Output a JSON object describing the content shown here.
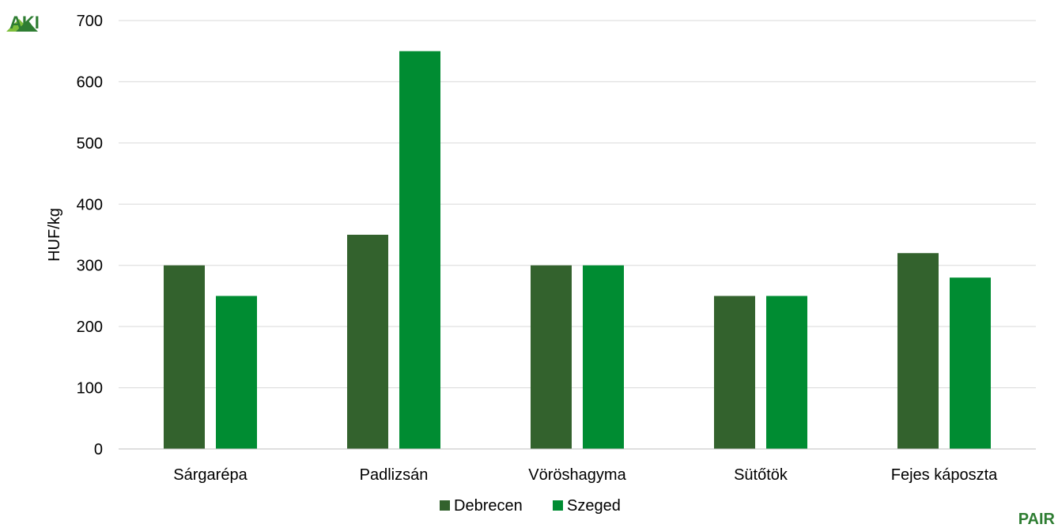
{
  "logos": {
    "top_left": "AKI",
    "bottom_right": "PAIR"
  },
  "colors": {
    "debrecen": "#33622D",
    "szeged": "#008C32",
    "grid": "#D9D9D9",
    "axis": "#BFBFBF",
    "logo_green_light": "#7DBE3A",
    "logo_green_dark": "#2E7D32",
    "pair_text": "#2E7D32"
  },
  "chart_data": {
    "type": "bar",
    "ylabel": "HUF/kg",
    "xlabel": "",
    "ylim": [
      0,
      700
    ],
    "yticks": [
      "0",
      "100",
      "200",
      "300",
      "400",
      "500",
      "600",
      "700"
    ],
    "grid": true,
    "legend_position": "bottom-center",
    "categories": [
      "Sárgarépa",
      "Padlizsán",
      "Vöröshagyma",
      "Sütőtök",
      "Fejes káposzta"
    ],
    "series": [
      {
        "name": "Debrecen",
        "values": [
          300,
          350,
          300,
          250,
          320
        ]
      },
      {
        "name": "Szeged",
        "values": [
          250,
          650,
          300,
          250,
          280
        ]
      }
    ]
  }
}
